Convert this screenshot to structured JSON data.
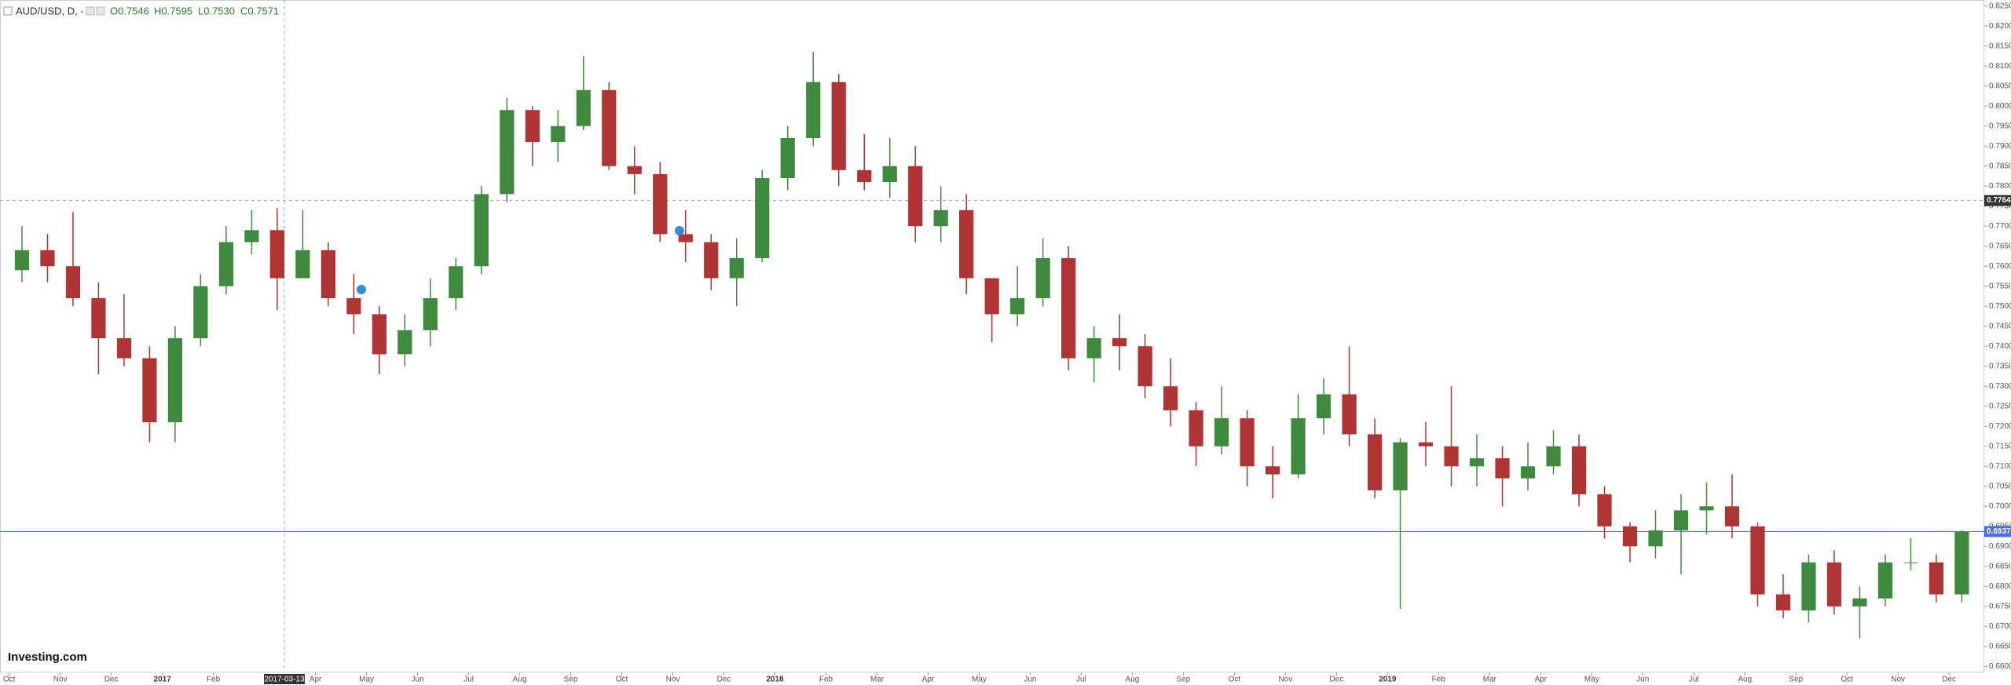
{
  "chart_data": {
    "type": "candlestick",
    "symbol": "AUD/USD, D, -",
    "ohlc_labels": [
      "O0.7546",
      "H0.7595",
      "L0.7530",
      "C0.7571"
    ],
    "logo": "Investing.com",
    "up_color": "#3f8a3f",
    "down_color": "#b03434",
    "x": [
      0.25,
      0.75,
      1.25,
      1.75,
      2.25,
      2.75,
      3.25,
      3.75,
      4.25,
      4.75,
      5.25,
      5.75,
      6.25,
      6.75,
      7.25,
      7.75,
      8.25,
      8.75,
      9.25,
      9.75,
      10.25,
      10.75,
      11.25,
      11.75,
      12.25,
      12.75,
      13.25,
      13.75,
      14.25,
      14.75,
      15.25,
      15.75,
      16.25,
      16.75,
      17.25,
      17.75,
      18.25,
      18.75,
      19.25,
      19.75,
      20.25,
      20.75,
      21.25,
      21.75,
      22.25,
      22.75,
      23.25,
      23.75,
      24.25,
      24.75,
      25.25,
      25.75,
      26.25,
      26.75,
      27.25,
      27.75,
      28.25,
      28.75,
      29.25,
      29.75,
      30.25,
      30.75,
      31.25,
      31.75,
      32.25,
      32.75,
      33.25,
      33.75,
      34.25,
      34.75,
      35.25,
      35.75,
      36.25,
      36.75,
      37.25,
      37.75,
      38.25
    ],
    "open": [
      0.759,
      0.764,
      0.76,
      0.752,
      0.742,
      0.737,
      0.721,
      0.742,
      0.755,
      0.766,
      0.769,
      0.757,
      0.764,
      0.752,
      0.748,
      0.738,
      0.744,
      0.752,
      0.76,
      0.778,
      0.799,
      0.791,
      0.795,
      0.804,
      0.785,
      0.783,
      0.768,
      0.766,
      0.757,
      0.762,
      0.782,
      0.792,
      0.806,
      0.784,
      0.781,
      0.785,
      0.77,
      0.774,
      0.757,
      0.748,
      0.752,
      0.762,
      0.737,
      0.742,
      0.74,
      0.73,
      0.724,
      0.715,
      0.722,
      0.71,
      0.708,
      0.722,
      0.728,
      0.718,
      0.704,
      0.716,
      0.715,
      0.71,
      0.712,
      0.707,
      0.71,
      0.715,
      0.703,
      0.695,
      0.69,
      0.694,
      0.699,
      0.7,
      0.695,
      0.678,
      0.674,
      0.686,
      0.675,
      0.677,
      0.686,
      0.686,
      0.678
    ],
    "high": [
      0.77,
      0.768,
      0.7735,
      0.756,
      0.753,
      0.74,
      0.745,
      0.758,
      0.77,
      0.774,
      0.7745,
      0.774,
      0.766,
      0.758,
      0.75,
      0.748,
      0.757,
      0.762,
      0.78,
      0.802,
      0.8,
      0.799,
      0.8125,
      0.806,
      0.79,
      0.786,
      0.774,
      0.768,
      0.767,
      0.784,
      0.795,
      0.8136,
      0.808,
      0.793,
      0.792,
      0.79,
      0.78,
      0.778,
      0.757,
      0.76,
      0.767,
      0.765,
      0.745,
      0.748,
      0.743,
      0.737,
      0.726,
      0.73,
      0.724,
      0.715,
      0.728,
      0.732,
      0.74,
      0.722,
      0.717,
      0.721,
      0.73,
      0.718,
      0.715,
      0.716,
      0.719,
      0.718,
      0.705,
      0.696,
      0.699,
      0.703,
      0.706,
      0.708,
      0.696,
      0.683,
      0.688,
      0.689,
      0.68,
      0.688,
      0.692,
      0.688,
      0.694
    ],
    "low": [
      0.756,
      0.756,
      0.75,
      0.733,
      0.735,
      0.716,
      0.716,
      0.74,
      0.753,
      0.763,
      0.749,
      0.757,
      0.75,
      0.743,
      0.733,
      0.735,
      0.74,
      0.749,
      0.758,
      0.776,
      0.785,
      0.786,
      0.794,
      0.784,
      0.778,
      0.766,
      0.761,
      0.754,
      0.75,
      0.761,
      0.779,
      0.79,
      0.78,
      0.779,
      0.777,
      0.766,
      0.766,
      0.753,
      0.741,
      0.745,
      0.75,
      0.734,
      0.731,
      0.734,
      0.727,
      0.72,
      0.71,
      0.713,
      0.705,
      0.702,
      0.707,
      0.718,
      0.715,
      0.702,
      0.6744,
      0.71,
      0.705,
      0.705,
      0.7,
      0.704,
      0.708,
      0.7,
      0.692,
      0.686,
      0.687,
      0.683,
      0.693,
      0.692,
      0.675,
      0.672,
      0.671,
      0.673,
      0.667,
      0.675,
      0.684,
      0.676,
      0.676
    ],
    "close": [
      0.764,
      0.76,
      0.752,
      0.742,
      0.737,
      0.721,
      0.742,
      0.755,
      0.766,
      0.769,
      0.757,
      0.764,
      0.752,
      0.748,
      0.738,
      0.744,
      0.752,
      0.76,
      0.778,
      0.799,
      0.791,
      0.795,
      0.804,
      0.785,
      0.783,
      0.768,
      0.766,
      0.757,
      0.762,
      0.782,
      0.792,
      0.806,
      0.784,
      0.781,
      0.785,
      0.77,
      0.774,
      0.757,
      0.748,
      0.752,
      0.762,
      0.737,
      0.742,
      0.74,
      0.73,
      0.724,
      0.715,
      0.722,
      0.71,
      0.708,
      0.722,
      0.728,
      0.718,
      0.704,
      0.716,
      0.715,
      0.71,
      0.712,
      0.707,
      0.71,
      0.715,
      0.703,
      0.695,
      0.69,
      0.694,
      0.699,
      0.7,
      0.695,
      0.678,
      0.674,
      0.686,
      0.675,
      0.677,
      0.686,
      0.686,
      0.678,
      0.6937
    ],
    "xlim": [
      -0.18,
      38.69
    ],
    "ylim": [
      0.6585,
      0.8265
    ],
    "xticks": [
      {
        "value": 0,
        "label": "Oct"
      },
      {
        "value": 1,
        "label": "Nov"
      },
      {
        "value": 2,
        "label": "Dec"
      },
      {
        "value": 3,
        "label": "2017"
      },
      {
        "value": 4,
        "label": "Feb"
      },
      {
        "value": 6,
        "label": "Apr"
      },
      {
        "value": 7,
        "label": "May"
      },
      {
        "value": 8,
        "label": "Jun"
      },
      {
        "value": 9,
        "label": "Jul"
      },
      {
        "value": 10,
        "label": "Aug"
      },
      {
        "value": 11,
        "label": "Sep"
      },
      {
        "value": 12,
        "label": "Oct"
      },
      {
        "value": 13,
        "label": "Nov"
      },
      {
        "value": 14,
        "label": "Dec"
      },
      {
        "value": 15,
        "label": "2018"
      },
      {
        "value": 16,
        "label": "Feb"
      },
      {
        "value": 17,
        "label": "Mar"
      },
      {
        "value": 18,
        "label": "Apr"
      },
      {
        "value": 19,
        "label": "May"
      },
      {
        "value": 20,
        "label": "Jun"
      },
      {
        "value": 21,
        "label": "Jul"
      },
      {
        "value": 22,
        "label": "Aug"
      },
      {
        "value": 23,
        "label": "Sep"
      },
      {
        "value": 24,
        "label": "Oct"
      },
      {
        "value": 25,
        "label": "Nov"
      },
      {
        "value": 26,
        "label": "Dec"
      },
      {
        "value": 27,
        "label": "2019"
      },
      {
        "value": 28,
        "label": "Feb"
      },
      {
        "value": 29,
        "label": "Mar"
      },
      {
        "value": 30,
        "label": "Apr"
      },
      {
        "value": 31,
        "label": "May"
      },
      {
        "value": 32,
        "label": "Jun"
      },
      {
        "value": 33,
        "label": "Jul"
      },
      {
        "value": 34,
        "label": "Aug"
      },
      {
        "value": 35,
        "label": "Sep"
      },
      {
        "value": 36,
        "label": "Oct"
      },
      {
        "value": 37,
        "label": "Nov"
      },
      {
        "value": 38,
        "label": "Dec"
      }
    ],
    "yticks": [
      {
        "value": 0.66,
        "label": "0.6600"
      },
      {
        "value": 0.665,
        "label": "0.6650"
      },
      {
        "value": 0.67,
        "label": "0.6700"
      },
      {
        "value": 0.675,
        "label": "0.6750"
      },
      {
        "value": 0.68,
        "label": "0.6800"
      },
      {
        "value": 0.685,
        "label": "0.6850"
      },
      {
        "value": 0.69,
        "label": "0.6900"
      },
      {
        "value": 0.695,
        "label": "0.6950"
      },
      {
        "value": 0.7,
        "label": "0.7000"
      },
      {
        "value": 0.705,
        "label": "0.7050"
      },
      {
        "value": 0.71,
        "label": "0.7100"
      },
      {
        "value": 0.715,
        "label": "0.7150"
      },
      {
        "value": 0.72,
        "label": "0.7200"
      },
      {
        "value": 0.725,
        "label": "0.7250"
      },
      {
        "value": 0.73,
        "label": "0.7300"
      },
      {
        "value": 0.735,
        "label": "0.7350"
      },
      {
        "value": 0.74,
        "label": "0.7400"
      },
      {
        "value": 0.745,
        "label": "0.7450"
      },
      {
        "value": 0.75,
        "label": "0.7500"
      },
      {
        "value": 0.755,
        "label": "0.7550"
      },
      {
        "value": 0.76,
        "label": "0.7600"
      },
      {
        "value": 0.765,
        "label": "0.7650"
      },
      {
        "value": 0.77,
        "label": "0.7700"
      },
      {
        "value": 0.775,
        "label": "0.7750"
      },
      {
        "value": 0.78,
        "label": "0.7800"
      },
      {
        "value": 0.785,
        "label": "0.7850"
      },
      {
        "value": 0.79,
        "label": "0.7900"
      },
      {
        "value": 0.795,
        "label": "0.7950"
      },
      {
        "value": 0.8,
        "label": "0.8000"
      },
      {
        "value": 0.805,
        "label": "0.8050"
      },
      {
        "value": 0.81,
        "label": "0.8100"
      },
      {
        "value": 0.815,
        "label": "0.8150"
      },
      {
        "value": 0.82,
        "label": "0.8200"
      },
      {
        "value": 0.825,
        "label": "0.8250"
      }
    ],
    "crosshair": {
      "x": 5.39,
      "date_label": "2017-03-13",
      "price": 0.7764
    },
    "last_price": 0.6937,
    "last_price_color": "#4a6fe3"
  }
}
